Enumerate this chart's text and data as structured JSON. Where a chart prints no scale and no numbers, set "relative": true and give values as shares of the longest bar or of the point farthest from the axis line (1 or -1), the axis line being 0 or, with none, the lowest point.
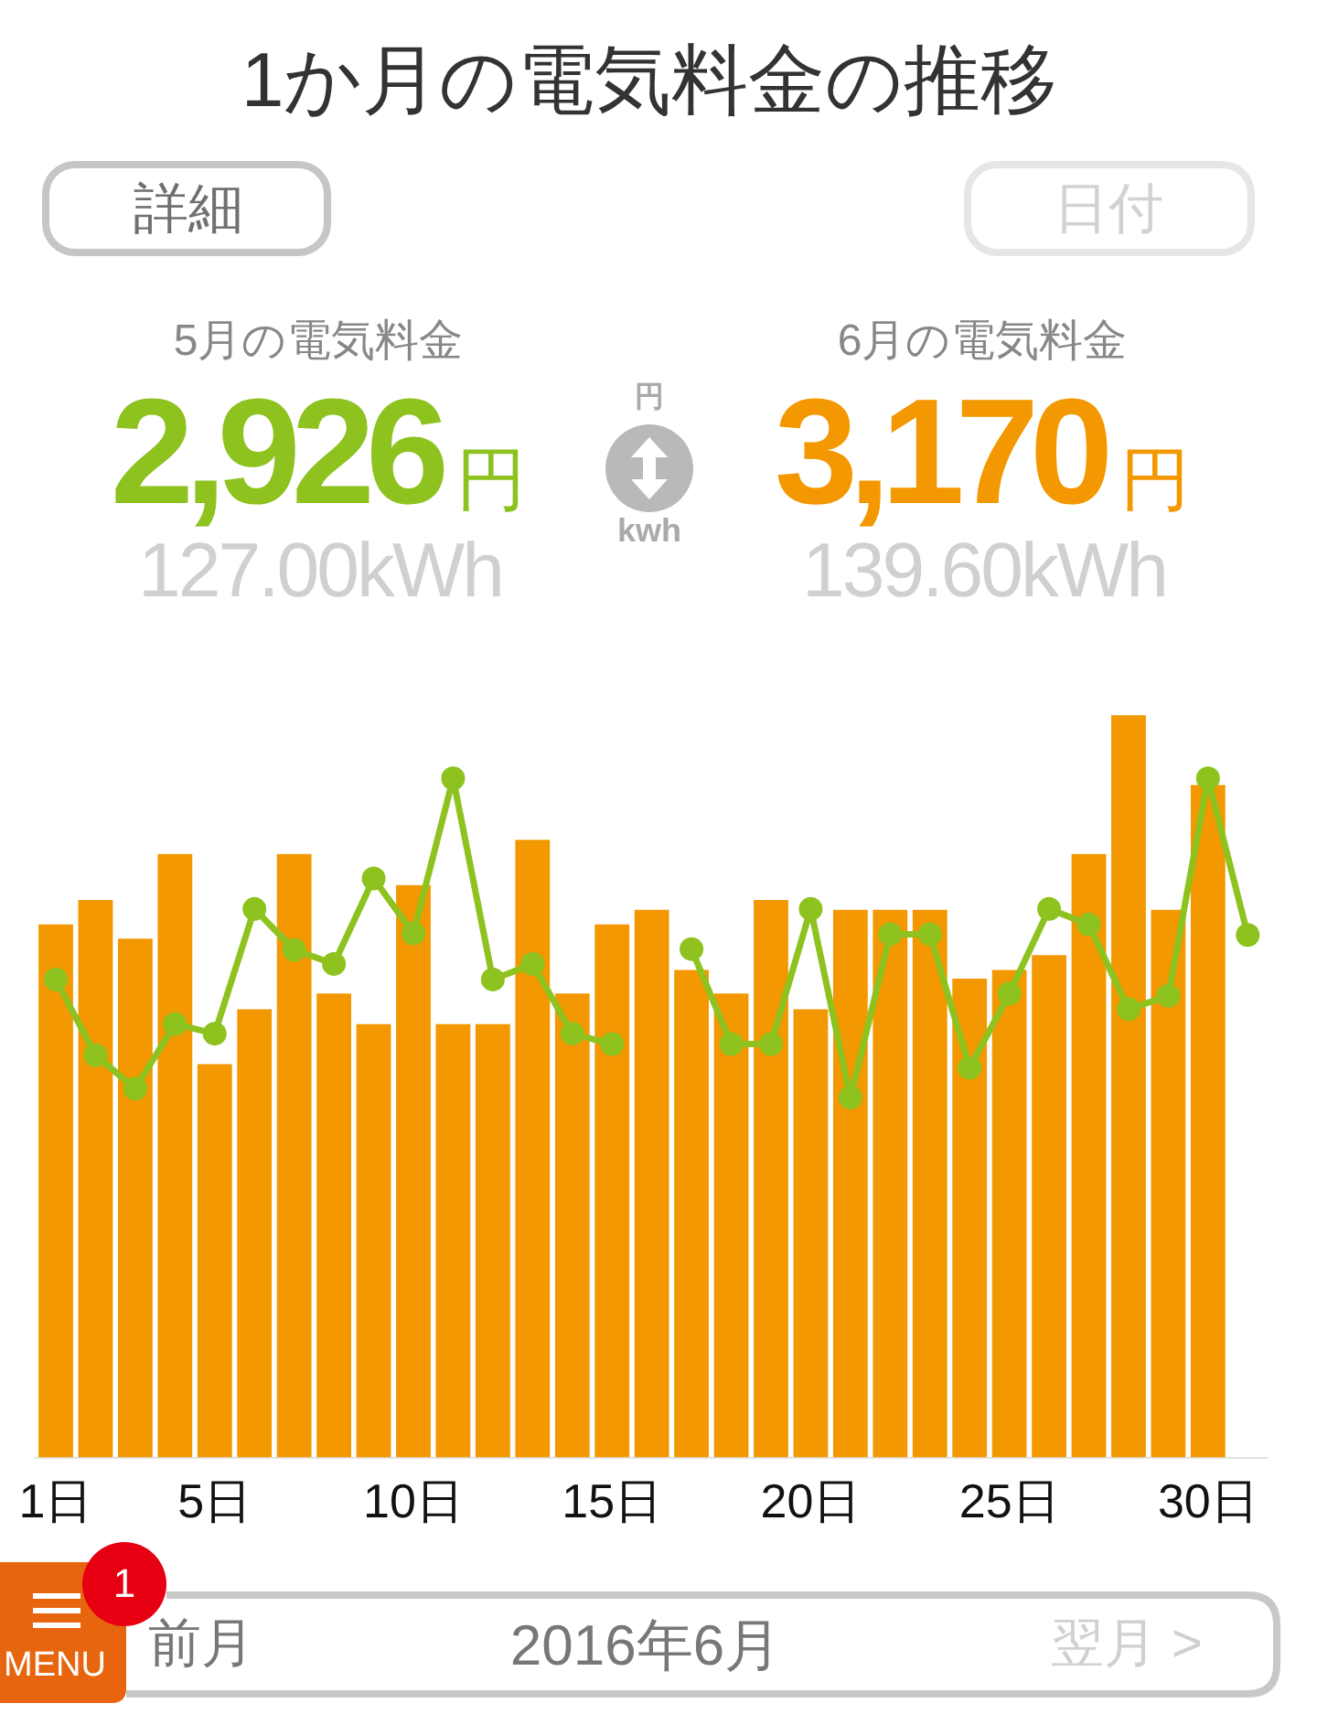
{
  "chart_data": {
    "type": "bar",
    "title": "1か月の電気料金の推移",
    "categories": [
      "1日",
      null,
      null,
      null,
      "5日",
      null,
      null,
      null,
      null,
      "10日",
      null,
      null,
      null,
      null,
      "15日",
      null,
      null,
      null,
      null,
      "20日",
      null,
      null,
      null,
      null,
      "25日",
      null,
      null,
      null,
      null,
      "30日",
      null
    ],
    "series": [
      {
        "type": "line",
        "color": "#8dc21f",
        "values": [
          0.644,
          0.542,
          0.497,
          0.584,
          0.571,
          0.739,
          0.684,
          0.665,
          0.78,
          0.706,
          0.915,
          0.644,
          0.665,
          0.571,
          0.557,
          null,
          0.685,
          0.557,
          0.557,
          0.739,
          0.485,
          0.705,
          0.705,
          0.525,
          0.625,
          0.739,
          0.718,
          0.604,
          0.622,
          0.915,
          0.704
        ]
      },
      {
        "color": "#f39800",
        "values": [
          0.718,
          0.751,
          0.699,
          0.813,
          0.53,
          0.604,
          0.813,
          0.625,
          0.584,
          0.771,
          0.584,
          0.584,
          0.832,
          0.625,
          0.718,
          0.738,
          0.657,
          0.625,
          0.751,
          0.604,
          0.738,
          0.738,
          0.738,
          0.645,
          0.657,
          0.677,
          0.813,
          1,
          0.738,
          0.906,
          null
        ]
      }
    ],
    "relative": true,
    "marker": "circle",
    "line_style": "solid",
    "annotations": [
      "5月の電気料金",
      "2,926円",
      "127.00kWh",
      "6月の電気料金",
      "3,170円",
      "139.60kWh",
      "円",
      "kwh",
      "詳細",
      "日付",
      "前月",
      "2016年6月",
      "翌月 >",
      "MENU",
      "1"
    ]
  }
}
